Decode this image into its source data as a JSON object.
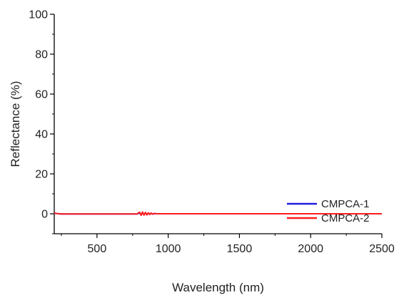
{
  "chart_data": {
    "type": "line",
    "title": "",
    "xlabel": "Wavelength (nm)",
    "ylabel": "Reflectance (%)",
    "xlim": [
      200,
      2500
    ],
    "ylim": [
      -10,
      100
    ],
    "xticks": [
      500,
      1000,
      1500,
      2000,
      2500
    ],
    "xtick_labels": [
      "500",
      "1000",
      "1500",
      "2000",
      "2500"
    ],
    "yticks": [
      0,
      20,
      40,
      60,
      80,
      100
    ],
    "ytick_labels": [
      "0",
      "20",
      "40",
      "60",
      "80",
      "100"
    ],
    "legend_position": "bottom-right",
    "series": [
      {
        "name": "CMPCA-1",
        "color": "#1f1fe0",
        "x": [
          200,
          210,
          230,
          250,
          300,
          400,
          500,
          600,
          700,
          780,
          800,
          810,
          820,
          830,
          840,
          850,
          860,
          870,
          880,
          890,
          900,
          920,
          950,
          1000,
          1100,
          1200,
          1300,
          1400,
          1500,
          1600,
          1700,
          1800,
          1900,
          2000,
          2100,
          2200,
          2300,
          2400,
          2500
        ],
        "y": [
          0.3,
          0.2,
          0.0,
          -0.1,
          -0.1,
          -0.1,
          -0.1,
          -0.1,
          -0.1,
          -0.1,
          0.4,
          -0.6,
          0.6,
          -0.5,
          0.5,
          -0.4,
          0.4,
          -0.3,
          0.3,
          -0.2,
          0.1,
          0.0,
          0.0,
          0.0,
          0.0,
          0.0,
          0.0,
          0.0,
          0.0,
          0.0,
          0.0,
          0.0,
          0.0,
          0.0,
          0.0,
          0.0,
          0.0,
          0.0,
          0.0
        ]
      },
      {
        "name": "CMPCA-2",
        "color": "#ff1c1c",
        "x": [
          200,
          210,
          230,
          250,
          300,
          400,
          500,
          600,
          700,
          780,
          800,
          810,
          820,
          830,
          840,
          850,
          860,
          870,
          880,
          890,
          900,
          920,
          950,
          1000,
          1100,
          1200,
          1300,
          1400,
          1500,
          1600,
          1700,
          1800,
          1900,
          2000,
          2100,
          2200,
          2300,
          2400,
          2500
        ],
        "y": [
          0.5,
          0.2,
          0.0,
          -0.1,
          -0.1,
          -0.1,
          -0.1,
          -0.1,
          -0.1,
          -0.1,
          0.8,
          -0.8,
          0.9,
          -0.7,
          0.7,
          -0.6,
          0.5,
          -0.4,
          0.4,
          -0.2,
          0.2,
          0.0,
          0.0,
          0.0,
          0.0,
          0.0,
          0.0,
          0.0,
          0.0,
          0.0,
          0.0,
          0.0,
          0.0,
          0.0,
          0.0,
          0.0,
          0.0,
          0.0,
          0.0
        ]
      }
    ]
  }
}
